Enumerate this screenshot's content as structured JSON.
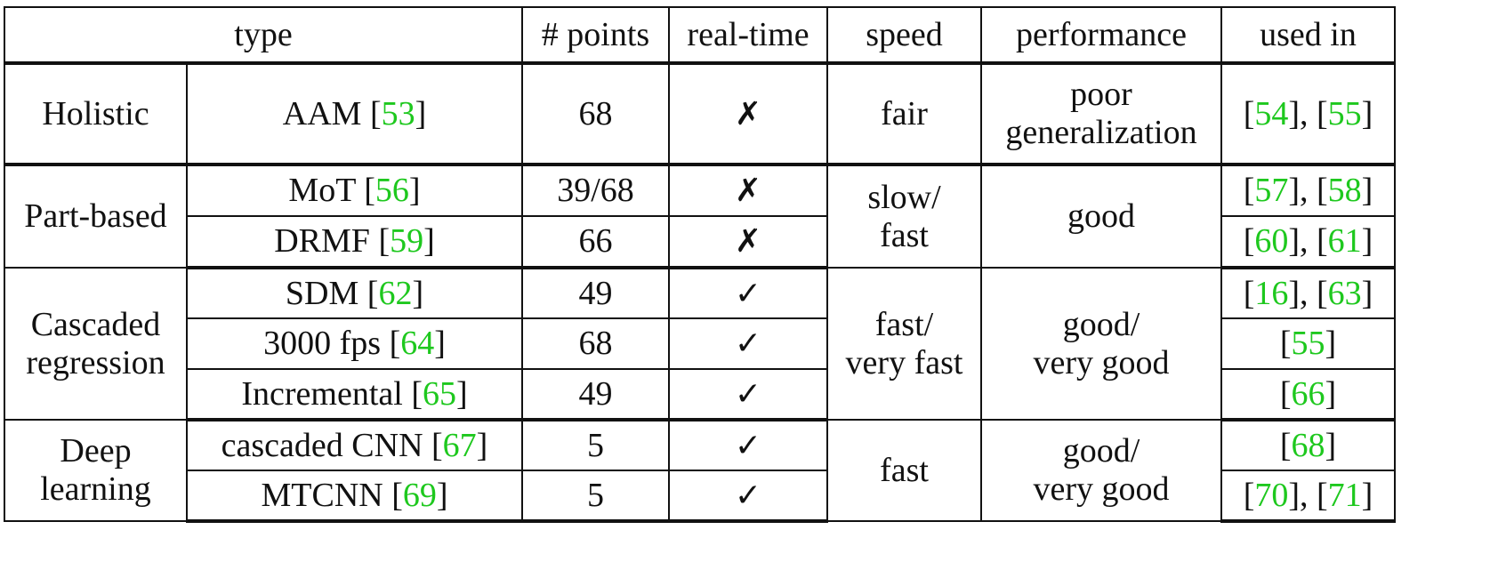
{
  "headers": [
    "type",
    "# points",
    "real-time",
    "speed",
    "performance",
    "used in"
  ],
  "groups": [
    {
      "label": [
        "Holistic"
      ],
      "speed": [
        "fair"
      ],
      "performance": [
        "poor",
        "generalization"
      ],
      "methods": [
        {
          "name": "AAM",
          "ref": "53",
          "points": "68",
          "realtime": "✗",
          "used_in": [
            [
              "54"
            ],
            [
              "55"
            ]
          ]
        }
      ]
    },
    {
      "label": [
        "Part-based"
      ],
      "speed": [
        "slow/",
        "fast"
      ],
      "performance": [
        "good"
      ],
      "methods": [
        {
          "name": "MoT",
          "ref": "56",
          "points": "39/68",
          "realtime": "✗",
          "used_in": [
            [
              "57"
            ],
            [
              "58"
            ]
          ]
        },
        {
          "name": "DRMF",
          "ref": "59",
          "points": "66",
          "realtime": "✗",
          "used_in": [
            [
              "60"
            ],
            [
              "61"
            ]
          ]
        }
      ]
    },
    {
      "label": [
        "Cascaded",
        "regression"
      ],
      "speed": [
        "fast/",
        "very fast"
      ],
      "performance": [
        "good/",
        "very good"
      ],
      "methods": [
        {
          "name": "SDM",
          "ref": "62",
          "points": "49",
          "realtime": "✓",
          "used_in": [
            [
              "16"
            ],
            [
              "63"
            ]
          ]
        },
        {
          "name": "3000 fps",
          "ref": "64",
          "points": "68",
          "realtime": "✓",
          "used_in": [
            [
              "55"
            ]
          ]
        },
        {
          "name": "Incremental",
          "ref": "65",
          "points": "49",
          "realtime": "✓",
          "used_in": [
            [
              "66"
            ]
          ]
        }
      ]
    },
    {
      "label": [
        "Deep",
        "learning"
      ],
      "speed": [
        "fast"
      ],
      "performance": [
        "good/",
        "very good"
      ],
      "methods": [
        {
          "name": "cascaded CNN",
          "ref": "67",
          "points": "5",
          "realtime": "✓",
          "used_in": [
            [
              "68"
            ]
          ]
        },
        {
          "name": "MTCNN",
          "ref": "69",
          "points": "5",
          "realtime": "✓",
          "used_in": [
            [
              "70"
            ],
            [
              "71"
            ]
          ]
        }
      ]
    }
  ]
}
